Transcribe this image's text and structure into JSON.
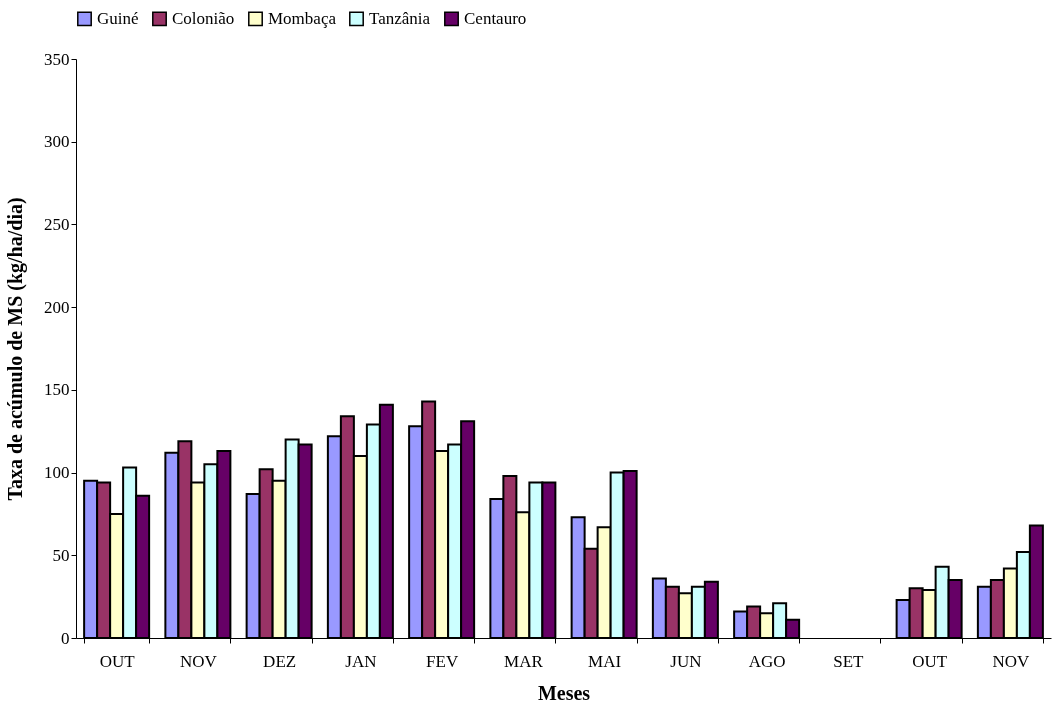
{
  "chart_data": {
    "type": "bar",
    "xlabel": "Meses",
    "ylabel": "Taxa de acúmulo de MS (kg/ha/dia)",
    "categories": [
      "OUT",
      "NOV",
      "DEZ",
      "JAN",
      "FEV",
      "MAR",
      "MAI",
      "JUN",
      "AGO",
      "SET",
      "OUT",
      "NOV"
    ],
    "series": [
      {
        "name": "Guiné",
        "color": "#9999ff",
        "values": [
          95,
          112,
          87,
          122,
          128,
          84,
          73,
          36,
          16,
          null,
          23,
          31
        ]
      },
      {
        "name": "Colonião",
        "color": "#993366",
        "values": [
          94,
          119,
          102,
          134,
          143,
          98,
          54,
          31,
          19,
          null,
          30,
          35
        ]
      },
      {
        "name": "Mombaça",
        "color": "#ffffcc",
        "values": [
          75,
          94,
          95,
          110,
          113,
          76,
          67,
          27,
          15,
          null,
          29,
          42
        ]
      },
      {
        "name": "Tanzânia",
        "color": "#ccffff",
        "values": [
          103,
          105,
          120,
          129,
          117,
          94,
          100,
          31,
          21,
          null,
          43,
          52
        ]
      },
      {
        "name": "Centauro",
        "color": "#660066",
        "values": [
          86,
          113,
          117,
          141,
          131,
          94,
          101,
          34,
          11,
          null,
          35,
          68
        ]
      }
    ],
    "ylim": [
      0,
      350
    ],
    "yticks": [
      0,
      50,
      100,
      150,
      200,
      250,
      300,
      350
    ],
    "grid": false,
    "legend": "top"
  }
}
